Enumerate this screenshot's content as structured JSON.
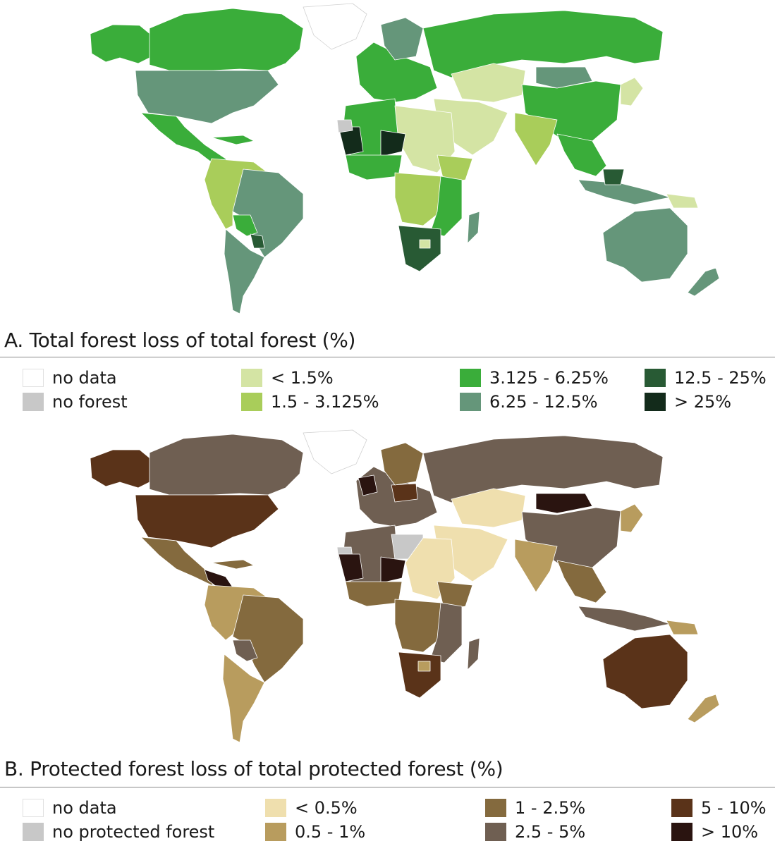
{
  "panels": [
    {
      "id": "A",
      "title": "A. Total forest loss of total forest (%)",
      "legend": [
        {
          "label": "no data",
          "color": "#ffffff"
        },
        {
          "label": "no forest",
          "color": "#c8c8c8"
        },
        {
          "label": "< 1.5%",
          "color": "#d4e4a4"
        },
        {
          "label": "1.5 - 3.125%",
          "color": "#a9cd5a"
        },
        {
          "label": "3.125 - 6.25%",
          "color": "#3aad3a"
        },
        {
          "label": "6.25 - 12.5%",
          "color": "#65967a"
        },
        {
          "label": "12.5 - 25%",
          "color": "#285a34"
        },
        {
          "label": "> 25%",
          "color": "#132b1b"
        }
      ]
    },
    {
      "id": "B",
      "title": "B. Protected forest loss of total protected forest (%)",
      "legend": [
        {
          "label": "no data",
          "color": "#ffffff"
        },
        {
          "label": "no protected forest",
          "color": "#c8c8c8"
        },
        {
          "label": "< 0.5%",
          "color": "#efdfae"
        },
        {
          "label": "0.5 - 1%",
          "color": "#b89c5e"
        },
        {
          "label": "1 - 2.5%",
          "color": "#846a3e"
        },
        {
          "label": "2.5 - 5%",
          "color": "#6f5f52"
        },
        {
          "label": "5 - 10%",
          "color": "#5a3319"
        },
        {
          "label": "> 10%",
          "color": "#2a1410"
        }
      ]
    }
  ]
}
